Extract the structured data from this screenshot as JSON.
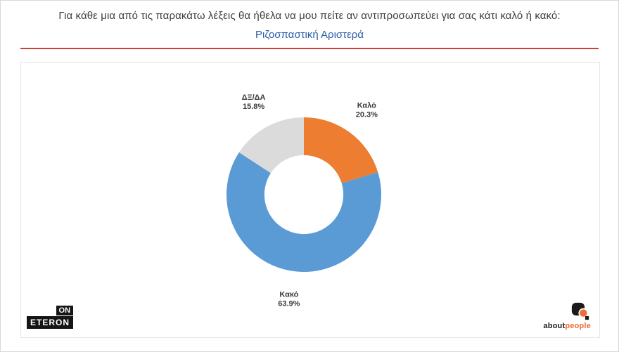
{
  "header": {
    "title": "Για κάθε μια από τις παρακάτω λέξεις θα ήθελα να μου πείτε αν αντιπροσωπεύει για σας κάτι καλό ή κακό:",
    "subtitle": "Ριζοσπαστική Αριστερά",
    "subtitle_color": "#2a5caa",
    "divider_color": "#cb4335"
  },
  "chart_data": {
    "type": "pie",
    "subtype": "donut",
    "title": "Ριζοσπαστική Αριστερά",
    "direction": "clockwise",
    "start_angle_deg": 0,
    "inner_radius_ratio": 0.51,
    "labels_outside": true,
    "slices": [
      {
        "label": "Καλό",
        "value": 20.3,
        "color": "#ED7D31"
      },
      {
        "label": "Κακό",
        "value": 63.9,
        "color": "#5B9BD5"
      },
      {
        "label": "ΔΞ/ΔΑ",
        "value": 15.8,
        "color": "#DBDBDB"
      }
    ],
    "label_color": "#3b3b3b",
    "value_suffix": "%"
  },
  "footer": {
    "eteron_top": "ON",
    "eteron_bottom": "ETERON",
    "aboutpeople_black": "about",
    "aboutpeople_orange": "people",
    "aboutpeople_orange_color": "#f26b3a"
  }
}
